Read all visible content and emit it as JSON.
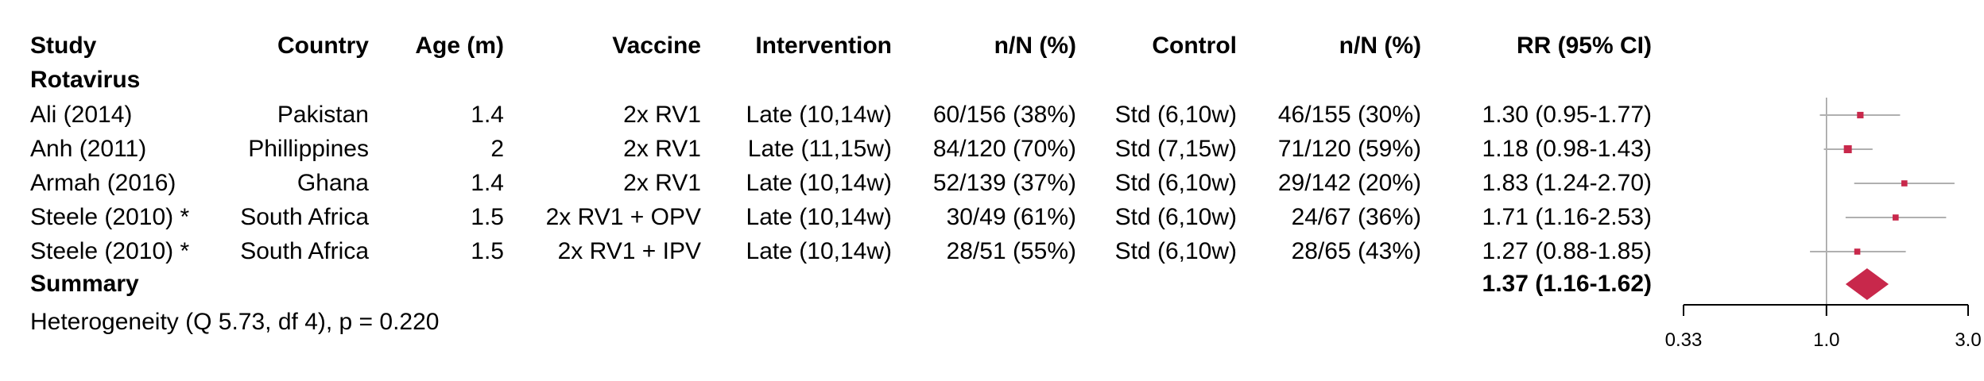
{
  "columns": [
    {
      "key": "study",
      "label": "Study",
      "align": "left"
    },
    {
      "key": "country",
      "label": "Country",
      "align": "right"
    },
    {
      "key": "age",
      "label": "Age (m)",
      "align": "right"
    },
    {
      "key": "vaccine",
      "label": "Vaccine",
      "align": "right"
    },
    {
      "key": "intervention",
      "label": "Intervention",
      "align": "right"
    },
    {
      "key": "int_n",
      "label": "n/N (%)",
      "align": "right"
    },
    {
      "key": "control",
      "label": "Control",
      "align": "right"
    },
    {
      "key": "ctl_n",
      "label": "n/N (%)",
      "align": "right"
    },
    {
      "key": "rr",
      "label": "RR (95% CI)",
      "align": "right"
    }
  ],
  "group_label": "Rotavirus",
  "rows": [
    {
      "study": "Ali (2014)",
      "country": "Pakistan",
      "age": "1.4",
      "vaccine": "2x RV1",
      "intervention": "Late (10,14w)",
      "int_n": "60/156 (38%)",
      "control": "Std (6,10w)",
      "ctl_n": "46/155 (30%)",
      "rr": "1.30 (0.95-1.77)"
    },
    {
      "study": "Anh (2011)",
      "country": "Phillippines",
      "age": "2",
      "vaccine": "2x RV1",
      "intervention": "Late (11,15w)",
      "int_n": "84/120 (70%)",
      "control": "Std (7,15w)",
      "ctl_n": "71/120 (59%)",
      "rr": "1.18 (0.98-1.43)"
    },
    {
      "study": "Armah (2016)",
      "country": "Ghana",
      "age": "1.4",
      "vaccine": "2x RV1",
      "intervention": "Late (10,14w)",
      "int_n": "52/139 (37%)",
      "control": "Std (6,10w)",
      "ctl_n": "29/142 (20%)",
      "rr": "1.83 (1.24-2.70)"
    },
    {
      "study": "Steele (2010) *",
      "country": "South Africa",
      "age": "1.5",
      "vaccine": "2x RV1 + OPV",
      "intervention": "Late (10,14w)",
      "int_n": "30/49 (61%)",
      "control": "Std (6,10w)",
      "ctl_n": "24/67 (36%)",
      "rr": "1.71 (1.16-2.53)"
    },
    {
      "study": "Steele (2010) *",
      "country": "South Africa",
      "age": "1.5",
      "vaccine": "2x RV1 + IPV",
      "intervention": "Late (10,14w)",
      "int_n": "28/51 (55%)",
      "control": "Std (6,10w)",
      "ctl_n": "28/65 (43%)",
      "rr": "1.27 (0.88-1.85)"
    }
  ],
  "summary": {
    "label": "Summary",
    "rr": "1.37 (1.16-1.62)"
  },
  "heterogeneity": "Heterogeneity (Q 5.73, df 4), p = 0.220",
  "chart_data": {
    "type": "forest",
    "x_scale": "log",
    "xlim": [
      0.33,
      3.0
    ],
    "x_ticks": [
      0.33,
      1.0,
      3.0
    ],
    "x_tick_labels": [
      "0.33",
      "1.0",
      "3.0"
    ],
    "reference_line": 1.0,
    "points": [
      {
        "estimate": 1.3,
        "lower": 0.95,
        "upper": 1.77,
        "weight": 0.7
      },
      {
        "estimate": 1.18,
        "lower": 0.98,
        "upper": 1.43,
        "weight": 1.0
      },
      {
        "estimate": 1.83,
        "lower": 1.24,
        "upper": 2.7,
        "weight": 0.6
      },
      {
        "estimate": 1.71,
        "lower": 1.16,
        "upper": 2.53,
        "weight": 0.6
      },
      {
        "estimate": 1.27,
        "lower": 0.88,
        "upper": 1.85,
        "weight": 0.6
      }
    ],
    "summary": {
      "estimate": 1.37,
      "lower": 1.16,
      "upper": 1.62
    },
    "colors": {
      "marker": "#c8284b",
      "ci_line": "#b0b0b0",
      "axis": "#000000",
      "ref_line": "#999999"
    }
  }
}
